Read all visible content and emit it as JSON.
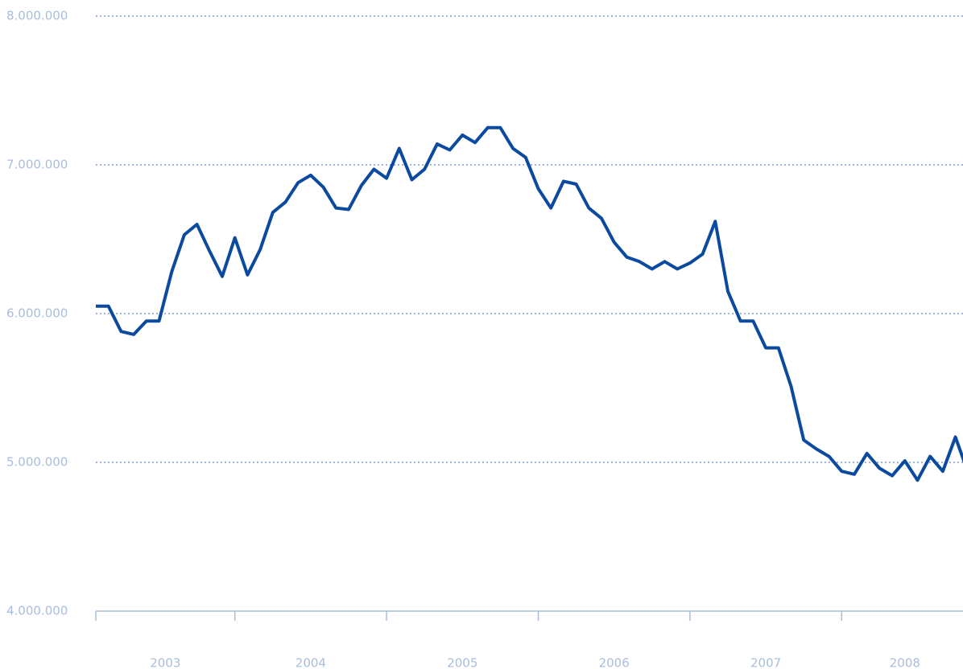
{
  "chart_data": {
    "type": "line",
    "color": "#0b4a9f",
    "grid": true,
    "ylim": [
      4000000,
      8000000
    ],
    "yticks": [
      {
        "value": 4000000,
        "label": "4.000.000"
      },
      {
        "value": 5000000,
        "label": "5.000.000"
      },
      {
        "value": 6000000,
        "label": "6.000.000"
      },
      {
        "value": 7000000,
        "label": "7.000.000"
      },
      {
        "value": 8000000,
        "label": "8.000.000"
      }
    ],
    "categories": [
      "2003",
      null,
      null,
      null,
      null,
      null,
      null,
      null,
      null,
      null,
      null,
      "2004",
      null,
      null,
      null,
      null,
      null,
      null,
      null,
      null,
      null,
      null,
      null,
      "2005",
      null,
      null,
      null,
      null,
      null,
      null,
      null,
      null,
      null,
      null,
      null,
      "2006",
      null,
      null,
      null,
      null,
      null,
      null,
      null,
      null,
      null,
      null,
      null,
      "2007",
      null,
      null,
      null,
      null,
      null,
      null,
      null,
      null,
      null,
      null,
      null,
      "2008",
      null,
      null,
      null,
      null,
      null,
      null,
      null,
      null,
      null,
      null
    ],
    "values": [
      6050000,
      6050000,
      5880000,
      5860000,
      5950000,
      5950000,
      6280000,
      6530000,
      6600000,
      6420000,
      6250000,
      6510000,
      6260000,
      6430000,
      6680000,
      6750000,
      6880000,
      6930000,
      6850000,
      6710000,
      6700000,
      6860000,
      6970000,
      6910000,
      7110000,
      6900000,
      6970000,
      7140000,
      7100000,
      7200000,
      7150000,
      7250000,
      7250000,
      7110000,
      7050000,
      6840000,
      6710000,
      6890000,
      6870000,
      6710000,
      6640000,
      6480000,
      6380000,
      6350000,
      6300000,
      6350000,
      6300000,
      6340000,
      6400000,
      6620000,
      6150000,
      5950000,
      5950000,
      5770000,
      5770000,
      5510000,
      5150000,
      5090000,
      5040000,
      4940000,
      4920000,
      5060000,
      4960000,
      4910000,
      5010000,
      4880000,
      5040000,
      4940000,
      5170000,
      4930000
    ]
  }
}
